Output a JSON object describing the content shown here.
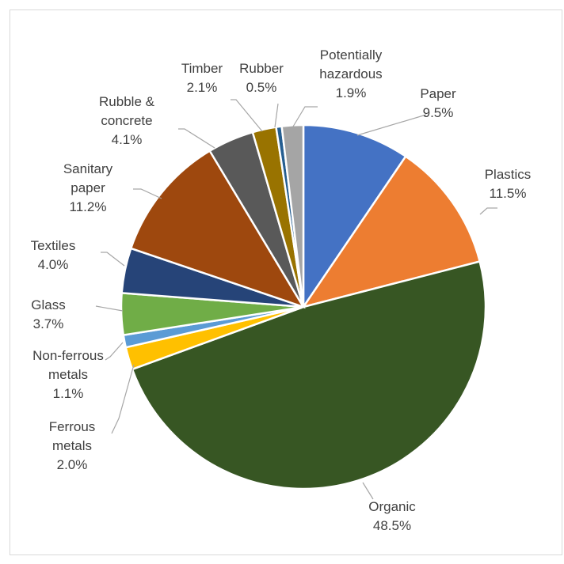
{
  "chart_data": {
    "type": "pie",
    "title": "",
    "start_angle_deg": 0,
    "direction": "clockwise",
    "slices": [
      {
        "label": "Paper",
        "value": 9.5,
        "value_label": "9.5%",
        "color": "#4472c4"
      },
      {
        "label": "Plastics",
        "value": 11.5,
        "value_label": "11.5%",
        "color": "#ed7d31"
      },
      {
        "label": "Organic",
        "value": 48.5,
        "value_label": "48.5%",
        "color": "#375623"
      },
      {
        "label": "Ferrous metals",
        "value": 2.0,
        "value_label": "2.0%",
        "color": "#ffc000"
      },
      {
        "label": "Non-ferrous metals",
        "value": 1.1,
        "value_label": "1.1%",
        "color": "#5b9bd5"
      },
      {
        "label": "Glass",
        "value": 3.7,
        "value_label": "3.7%",
        "color": "#70ad47"
      },
      {
        "label": "Textiles",
        "value": 4.0,
        "value_label": "4.0%",
        "color": "#264478"
      },
      {
        "label": "Sanitary paper",
        "value": 11.2,
        "value_label": "11.2%",
        "color": "#9e480e"
      },
      {
        "label": "Rubble & concrete",
        "value": 4.1,
        "value_label": "4.1%",
        "color": "#595959"
      },
      {
        "label": "Timber",
        "value": 2.1,
        "value_label": "2.1%",
        "color": "#997300"
      },
      {
        "label": "Rubber",
        "value": 0.5,
        "value_label": "0.5%",
        "color": "#255e91"
      },
      {
        "label": "Potentially hazardous",
        "value": 1.9,
        "value_label": "1.9%",
        "color": "#a5a5a5"
      }
    ]
  }
}
